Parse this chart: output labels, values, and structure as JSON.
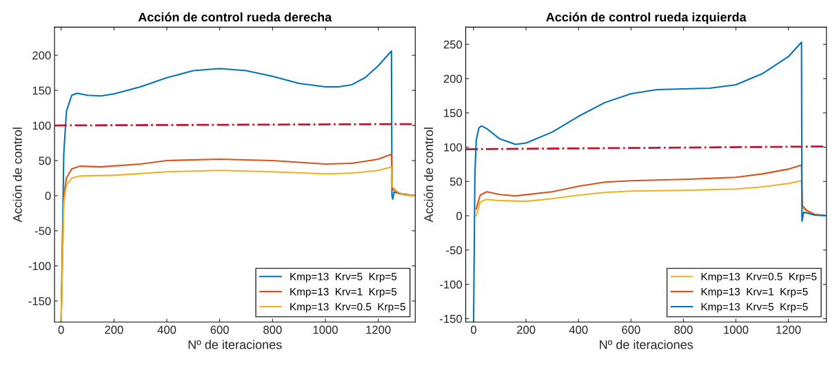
{
  "chart_data": [
    {
      "type": "line",
      "title": "Acción de control rueda derecha",
      "xlabel": "Nº de iteraciones",
      "ylabel": "Acción de control",
      "xlim": [
        -25,
        1340
      ],
      "ylim": [
        -180,
        240
      ],
      "xticks": [
        0,
        200,
        400,
        600,
        800,
        1000,
        1200
      ],
      "yticks": [
        -150,
        -100,
        -50,
        0,
        50,
        100,
        150,
        200
      ],
      "legend": "bottom right",
      "grid": false,
      "marker": "none",
      "line_style": "solid",
      "series": [
        {
          "name": "Kmp=13  Krv=5  Krp=5",
          "color": "#0072bd",
          "x": [
            0,
            10,
            20,
            40,
            60,
            100,
            150,
            200,
            300,
            400,
            500,
            600,
            700,
            800,
            900,
            1000,
            1050,
            1100,
            1150,
            1200,
            1250,
            1252,
            1255,
            1260,
            1280,
            1340
          ],
          "values": [
            -180,
            60,
            120,
            143,
            146,
            143,
            142,
            145,
            155,
            168,
            178,
            181,
            178,
            170,
            160,
            155,
            155,
            158,
            168,
            185,
            206,
            0,
            -5,
            5,
            3,
            0
          ]
        },
        {
          "name": "Kmp=13  Krv=1  Krp=5",
          "color": "#d95319",
          "x": [
            0,
            10,
            20,
            40,
            70,
            150,
            300,
            400,
            600,
            800,
            1000,
            1100,
            1200,
            1250,
            1253,
            1270,
            1300,
            1340
          ],
          "values": [
            -180,
            0,
            25,
            38,
            42,
            41,
            45,
            50,
            52,
            50,
            45,
            46,
            52,
            59,
            10,
            5,
            1,
            0
          ]
        },
        {
          "name": "Kmp=13  Krv=0.5  Krp=5",
          "color": "#edb120",
          "x": [
            0,
            10,
            20,
            40,
            70,
            200,
            400,
            600,
            800,
            1000,
            1100,
            1200,
            1250,
            1253,
            1270,
            1300,
            1340
          ],
          "values": [
            -180,
            -10,
            15,
            25,
            28,
            29,
            34,
            36,
            34,
            31,
            32,
            36,
            41,
            13,
            6,
            1,
            0
          ]
        },
        {
          "color": "#c0142c",
          "line_style": "dashdot",
          "x": [
            -25,
            1340
          ],
          "values": [
            100,
            102
          ]
        }
      ]
    },
    {
      "type": "line",
      "title": "Acción de control rueda izquierda",
      "xlabel": "Nº de iteraciones",
      "ylabel": "Acción de control",
      "xlim": [
        -30,
        1345
      ],
      "ylim": [
        -155,
        275
      ],
      "xticks": [
        0,
        200,
        400,
        600,
        800,
        1000,
        1200
      ],
      "yticks": [
        -150,
        -100,
        -50,
        0,
        50,
        100,
        150,
        200,
        250
      ],
      "legend": "bottom right",
      "grid": false,
      "marker": "none",
      "line_style": "solid",
      "series": [
        {
          "name": "Kmp=13  Krv=0.5  Krp=5",
          "color": "#edb120",
          "x": [
            10,
            25,
            50,
            100,
            200,
            300,
            400,
            500,
            600,
            800,
            1000,
            1100,
            1200,
            1250,
            1253,
            1270,
            1300,
            1345
          ],
          "values": [
            0,
            20,
            24,
            22,
            21,
            25,
            30,
            34,
            36,
            37,
            39,
            42,
            47,
            51,
            12,
            6,
            1,
            0
          ]
        },
        {
          "name": "Kmp=13  Krv=1  Krp=5",
          "color": "#d95319",
          "x": [
            10,
            25,
            50,
            100,
            160,
            300,
            400,
            500,
            600,
            800,
            1000,
            1100,
            1200,
            1250,
            1253,
            1270,
            1300,
            1345
          ],
          "values": [
            10,
            30,
            35,
            31,
            29,
            35,
            43,
            49,
            51,
            53,
            56,
            61,
            68,
            74,
            15,
            8,
            2,
            0
          ]
        },
        {
          "name": "Kmp=13  Krv=5  Krp=5",
          "color": "#0072bd",
          "x": [
            0,
            5,
            10,
            20,
            30,
            50,
            100,
            160,
            200,
            300,
            400,
            500,
            600,
            700,
            800,
            900,
            1000,
            1100,
            1200,
            1250,
            1252,
            1258,
            1280,
            1300,
            1345
          ],
          "values": [
            -155,
            60,
            110,
            128,
            131,
            127,
            112,
            104,
            106,
            122,
            145,
            165,
            178,
            184,
            185,
            186,
            191,
            207,
            232,
            253,
            -8,
            5,
            3,
            1,
            0
          ]
        },
        {
          "color": "#c0142c",
          "line_style": "dashdot",
          "x": [
            -30,
            1345
          ],
          "values": [
            97,
            101
          ]
        }
      ]
    }
  ]
}
